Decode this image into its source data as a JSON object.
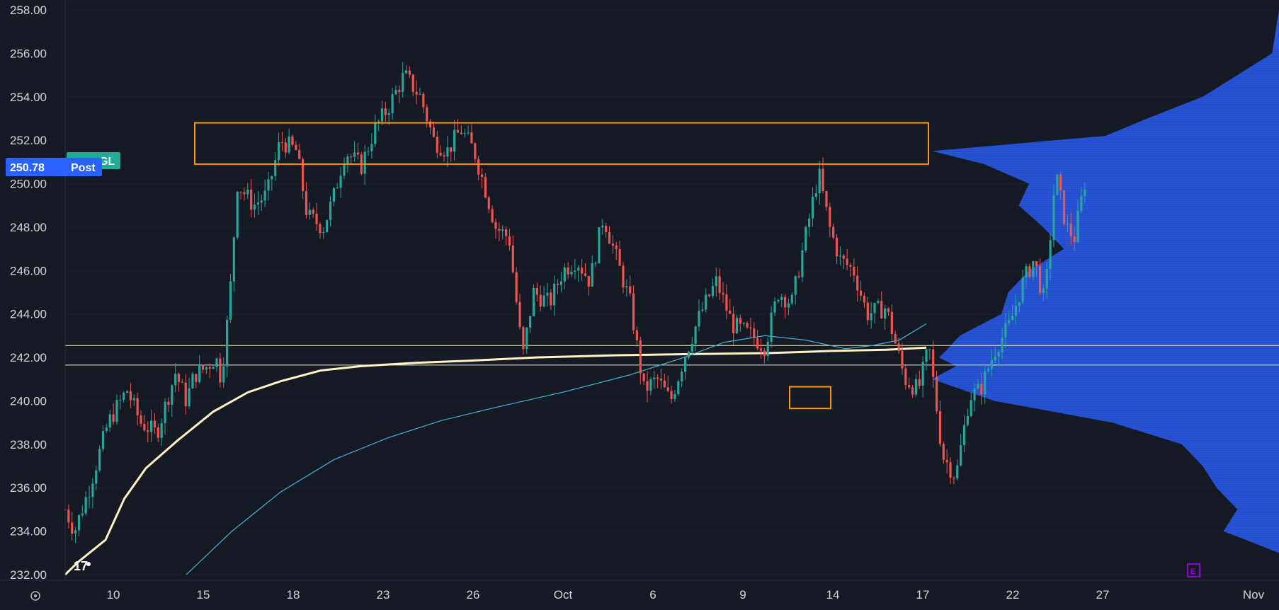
{
  "chart_data": {
    "type": "candlestick",
    "y_range": [
      232,
      258
    ],
    "y_ticks": [
      "258.00",
      "256.00",
      "254.00",
      "252.00",
      "250.00",
      "248.00",
      "246.00",
      "244.00",
      "242.00",
      "240.00",
      "238.00",
      "236.00",
      "234.00",
      "232.00"
    ],
    "x_ticks": [
      "10",
      "15",
      "18",
      "23",
      "26",
      "Oct",
      "6",
      "9",
      "14",
      "17",
      "22",
      "27",
      "Nov"
    ],
    "last_price": "250.78",
    "session_label": "Post",
    "symbol_fragment": "GL",
    "earnings_marker": "E",
    "logo": "17",
    "colors": {
      "background": "#161a25",
      "up": "#26a69a",
      "down": "#ef5350",
      "vwap": "#fff3c4",
      "moving_average": "#3fb4d6",
      "volume_profile": "#2962ff",
      "zone": "#ff9800",
      "price_badge": "#2962ff",
      "symbol_badge": "#22ab94",
      "earnings": "#b000ff"
    },
    "resistance_zone": {
      "top": 252.8,
      "bottom": 250.9
    },
    "support_box": {
      "top": 240.65,
      "bottom": 239.65
    },
    "horizontal_lines": [
      242.55,
      241.65
    ],
    "vwap_series": [
      [
        0.0,
        232.0
      ],
      [
        0.05,
        232.6
      ],
      [
        0.15,
        233.6
      ],
      [
        0.22,
        235.5
      ],
      [
        0.3,
        236.9
      ],
      [
        0.42,
        238.2
      ],
      [
        0.55,
        239.5
      ],
      [
        0.68,
        240.4
      ],
      [
        0.8,
        240.9
      ],
      [
        0.95,
        241.4
      ],
      [
        1.1,
        241.6
      ],
      [
        1.3,
        241.75
      ],
      [
        1.5,
        241.85
      ],
      [
        1.75,
        242.0
      ],
      [
        2.05,
        242.1
      ],
      [
        2.3,
        242.15
      ],
      [
        2.62,
        242.2
      ],
      [
        2.85,
        242.3
      ],
      [
        3.05,
        242.35
      ],
      [
        3.2,
        242.45
      ]
    ],
    "ma_series": [
      [
        0.45,
        232.0
      ],
      [
        0.62,
        234.0
      ],
      [
        0.8,
        235.8
      ],
      [
        1.0,
        237.3
      ],
      [
        1.2,
        238.3
      ],
      [
        1.4,
        239.1
      ],
      [
        1.6,
        239.7
      ],
      [
        1.85,
        240.4
      ],
      [
        2.1,
        241.2
      ],
      [
        2.3,
        242.0
      ],
      [
        2.45,
        242.7
      ],
      [
        2.6,
        243.0
      ],
      [
        2.75,
        242.8
      ],
      [
        2.9,
        242.4
      ],
      [
        3.0,
        242.55
      ],
      [
        3.1,
        242.8
      ],
      [
        3.2,
        243.55
      ]
    ],
    "price_path": [
      [
        0.0,
        235.0
      ],
      [
        0.035,
        234.0
      ],
      [
        0.09,
        236.0
      ],
      [
        0.16,
        239.0
      ],
      [
        0.23,
        240.5
      ],
      [
        0.28,
        239.0
      ],
      [
        0.34,
        238.5
      ],
      [
        0.41,
        241.3
      ],
      [
        0.45,
        240.0
      ],
      [
        0.48,
        241.2
      ],
      [
        0.52,
        241.5
      ],
      [
        0.56,
        242.0
      ],
      [
        0.58,
        241.0
      ],
      [
        0.61,
        244.5
      ],
      [
        0.64,
        250.0
      ],
      [
        0.7,
        249.0
      ],
      [
        0.75,
        249.5
      ],
      [
        0.8,
        252.0
      ],
      [
        0.86,
        251.5
      ],
      [
        0.9,
        248.5
      ],
      [
        0.96,
        248.0
      ],
      [
        1.0,
        249.5
      ],
      [
        1.04,
        251.5
      ],
      [
        1.1,
        250.8
      ],
      [
        1.15,
        252.5
      ],
      [
        1.2,
        253.5
      ],
      [
        1.26,
        255.0
      ],
      [
        1.32,
        254.0
      ],
      [
        1.37,
        252.0
      ],
      [
        1.42,
        251.5
      ],
      [
        1.47,
        252.5
      ],
      [
        1.52,
        251.5
      ],
      [
        1.56,
        249.8
      ],
      [
        1.6,
        248.0
      ],
      [
        1.65,
        247.5
      ],
      [
        1.7,
        242.0
      ],
      [
        1.74,
        245.0
      ],
      [
        1.8,
        244.5
      ],
      [
        1.85,
        246.0
      ],
      [
        1.9,
        246.5
      ],
      [
        1.95,
        245.5
      ],
      [
        2.0,
        248.5
      ],
      [
        2.05,
        246.5
      ],
      [
        2.1,
        244.5
      ],
      [
        2.15,
        240.5
      ],
      [
        2.2,
        241.0
      ],
      [
        2.25,
        240.0
      ],
      [
        2.3,
        242.0
      ],
      [
        2.36,
        244.0
      ],
      [
        2.42,
        245.5
      ],
      [
        2.48,
        243.5
      ],
      [
        2.55,
        243.0
      ],
      [
        2.6,
        242.5
      ],
      [
        2.65,
        245.0
      ],
      [
        2.7,
        244.5
      ],
      [
        2.75,
        247.5
      ],
      [
        2.8,
        250.5
      ],
      [
        2.84,
        248.0
      ],
      [
        2.88,
        246.5
      ],
      [
        2.93,
        246.0
      ],
      [
        2.98,
        244.0
      ],
      [
        3.05,
        244.3
      ],
      [
        3.12,
        241.0
      ],
      [
        3.17,
        240.5
      ],
      [
        3.21,
        242.5
      ],
      [
        3.26,
        237.5
      ],
      [
        3.31,
        236.5
      ],
      [
        3.36,
        240.2
      ],
      [
        3.4,
        240.5
      ],
      [
        3.46,
        242.5
      ],
      [
        3.51,
        243.5
      ],
      [
        3.56,
        245.5
      ],
      [
        3.6,
        246.5
      ],
      [
        3.64,
        244.5
      ],
      [
        3.68,
        250.5
      ],
      [
        3.72,
        248.0
      ],
      [
        3.75,
        247.5
      ],
      [
        3.8,
        250.78
      ]
    ],
    "volume_profile": [
      [
        258.0,
        0.0
      ],
      [
        256.0,
        0.02
      ],
      [
        255.0,
        0.12
      ],
      [
        254.0,
        0.22
      ],
      [
        253.0,
        0.38
      ],
      [
        252.2,
        0.5
      ],
      [
        251.5,
        1.0
      ],
      [
        250.9,
        0.85
      ],
      [
        250.0,
        0.72
      ],
      [
        249.0,
        0.75
      ],
      [
        248.0,
        0.68
      ],
      [
        247.0,
        0.62
      ],
      [
        246.0,
        0.72
      ],
      [
        245.0,
        0.78
      ],
      [
        244.0,
        0.8
      ],
      [
        243.0,
        0.92
      ],
      [
        242.3,
        0.96
      ],
      [
        242.0,
        0.98
      ],
      [
        241.6,
        0.93
      ],
      [
        241.0,
        1.0
      ],
      [
        240.0,
        0.82
      ],
      [
        239.0,
        0.48
      ],
      [
        238.0,
        0.28
      ],
      [
        237.0,
        0.22
      ],
      [
        236.0,
        0.18
      ],
      [
        235.0,
        0.12
      ],
      [
        234.0,
        0.16
      ],
      [
        233.0,
        0.0
      ],
      [
        232.0,
        0.0
      ]
    ]
  }
}
